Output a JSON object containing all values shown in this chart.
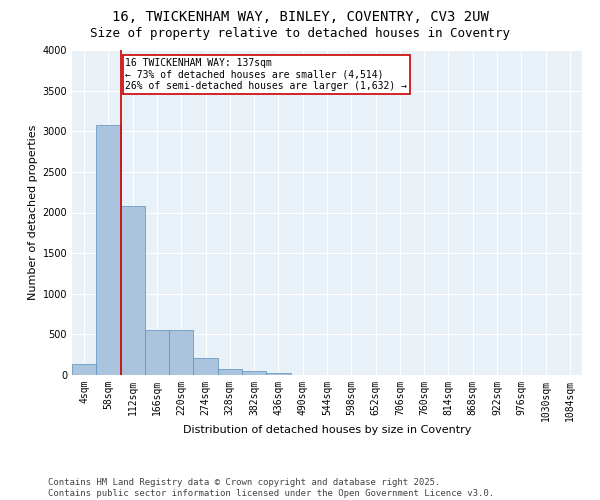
{
  "title_line1": "16, TWICKENHAM WAY, BINLEY, COVENTRY, CV3 2UW",
  "title_line2": "Size of property relative to detached houses in Coventry",
  "xlabel": "Distribution of detached houses by size in Coventry",
  "ylabel": "Number of detached properties",
  "categories": [
    "4sqm",
    "58sqm",
    "112sqm",
    "166sqm",
    "220sqm",
    "274sqm",
    "328sqm",
    "382sqm",
    "436sqm",
    "490sqm",
    "544sqm",
    "598sqm",
    "652sqm",
    "706sqm",
    "760sqm",
    "814sqm",
    "868sqm",
    "922sqm",
    "976sqm",
    "1030sqm",
    "1084sqm"
  ],
  "values": [
    130,
    3080,
    2080,
    550,
    550,
    210,
    75,
    45,
    20,
    5,
    3,
    2,
    1,
    0,
    0,
    0,
    0,
    0,
    0,
    0,
    0
  ],
  "bar_color": "#aac4de",
  "bar_edge_color": "#5a8fbe",
  "background_color": "#e8f0f8",
  "grid_color": "#ffffff",
  "vline_color": "#cc0000",
  "annotation_text": "16 TWICKENHAM WAY: 137sqm\n← 73% of detached houses are smaller (4,514)\n26% of semi-detached houses are larger (1,632) →",
  "annotation_box_color": "#cc0000",
  "ylim": [
    0,
    4000
  ],
  "yticks": [
    0,
    500,
    1000,
    1500,
    2000,
    2500,
    3000,
    3500,
    4000
  ],
  "footer_text": "Contains HM Land Registry data © Crown copyright and database right 2025.\nContains public sector information licensed under the Open Government Licence v3.0.",
  "title_fontsize": 10,
  "subtitle_fontsize": 9,
  "axis_label_fontsize": 8,
  "tick_fontsize": 7,
  "annotation_fontsize": 7,
  "footer_fontsize": 6.5
}
